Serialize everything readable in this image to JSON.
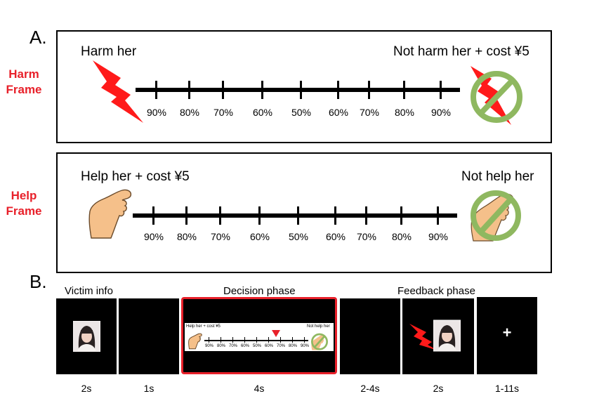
{
  "panel_a": {
    "letter": "A.",
    "harm_frame": {
      "label_line1": "Harm",
      "label_line2": "Frame",
      "left_option": "Harm her",
      "right_option": "Not harm her + cost ¥5",
      "left_icon": "lightning-bolt-icon",
      "right_icon": "crossed-out-lightning-icon"
    },
    "help_frame": {
      "label_line1": "Help",
      "label_line2": "Frame",
      "left_option": "Help her + cost ¥5",
      "right_option": "Not help her",
      "left_icon": "helping-hand-icon",
      "right_icon": "crossed-out-hand-icon"
    },
    "scale_ticks": [
      "90%",
      "80%",
      "70%",
      "60%",
      "50%",
      "60%",
      "70%",
      "80%",
      "90%"
    ]
  },
  "panel_b": {
    "letter": "B.",
    "phases": {
      "victim_info": "Victim info",
      "decision": "Decision phase",
      "feedback": "Feedback phase"
    },
    "durations": [
      "2s",
      "1s",
      "4s",
      "2-4s",
      "2s",
      "1-11s"
    ],
    "mini_left": "Help her + cost ¥5",
    "mini_right": "Not help her",
    "fixation": "+"
  },
  "colors": {
    "frame_label": "#e8202a",
    "bolt": "#ff1a1a",
    "no_symbol": "#8fb860",
    "hand": "#f5c08a",
    "decision_border": "#e8202a"
  }
}
